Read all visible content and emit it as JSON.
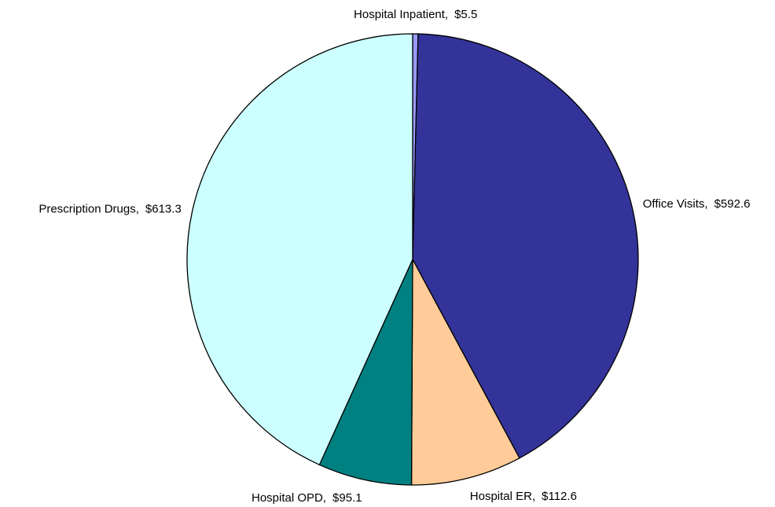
{
  "chart_data": {
    "type": "pie",
    "categories": [
      "Hospital Inpatient,",
      "Office Visits,",
      "Hospital ER,",
      "Hospital OPD,",
      "Prescription Drugs,"
    ],
    "values": [
      5.5,
      592.6,
      112.6,
      95.1,
      613.3
    ],
    "value_labels": [
      "$5.5",
      "$592.6",
      "$112.6",
      "$95.1",
      "$613.3"
    ],
    "colors": [
      "#9999ff",
      "#333399",
      "#ffcc99",
      "#008080",
      "#ccffff"
    ]
  }
}
